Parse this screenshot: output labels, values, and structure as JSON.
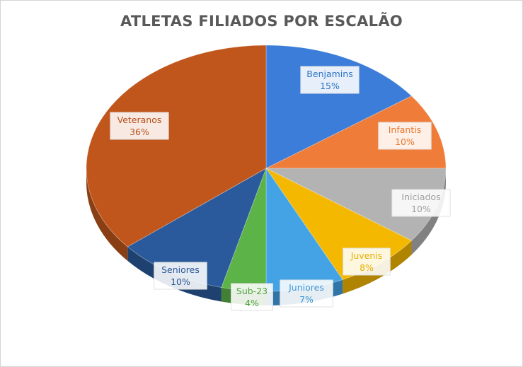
{
  "chart_data": {
    "type": "pie",
    "title": "ATLETAS FILIADOS POR ESCALÃO",
    "slices": [
      {
        "name": "Benjamins",
        "value": 15,
        "label": "15%",
        "color": "#3b7dd8"
      },
      {
        "name": "Infantis",
        "value": 10,
        "label": "10%",
        "color": "#f07c3a"
      },
      {
        "name": "Iniciados",
        "value": 10,
        "label": "10%",
        "color": "#b3b3b3"
      },
      {
        "name": "Juvenis",
        "value": 8,
        "label": "8%",
        "color": "#f5b800"
      },
      {
        "name": "Juniores",
        "value": 7,
        "label": "7%",
        "color": "#43a3e5"
      },
      {
        "name": "Sub-23",
        "value": 4,
        "label": "4%",
        "color": "#5cb347"
      },
      {
        "name": "Seniores",
        "value": 10,
        "label": "10%",
        "color": "#2a5a9b"
      },
      {
        "name": "Veteranos",
        "value": 36,
        "label": "36%",
        "color": "#c0561c"
      }
    ],
    "label_colors": {
      "Benjamins": "#2e75c6",
      "Infantis": "#e8772e",
      "Iniciados": "#a0a0a0",
      "Juvenis": "#e6ae00",
      "Juniores": "#3d96d6",
      "Sub-23": "#4fa23c",
      "Seniores": "#2b5797",
      "Veteranos": "#b7501a"
    }
  }
}
